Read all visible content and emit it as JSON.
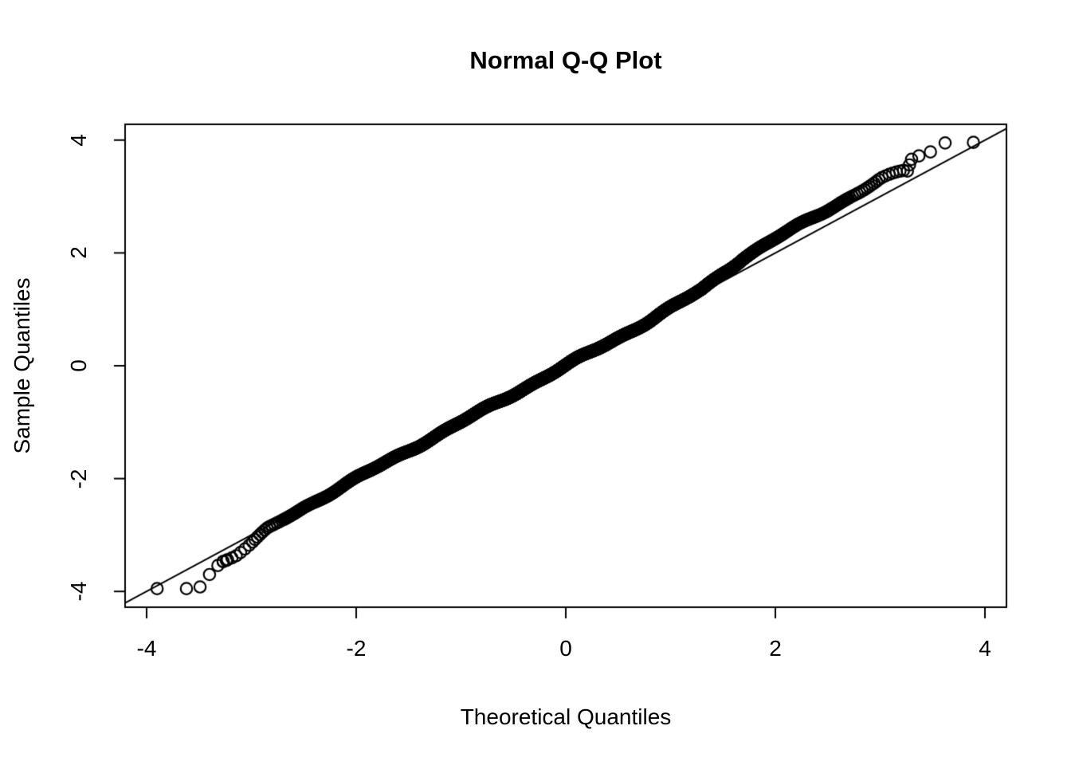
{
  "page": {
    "background": "#ffffff",
    "foreground": "#000000"
  },
  "chart_data": {
    "type": "scatter",
    "subtype": "normal-qq-plot",
    "title": "Normal Q-Q Plot",
    "xlabel": "Theoretical Quantiles",
    "ylabel": "Sample Quantiles",
    "xlim": [
      -4.205,
      4.205
    ],
    "ylim": [
      -4.28,
      4.28
    ],
    "xticks": [
      -4,
      -2,
      0,
      2,
      4
    ],
    "yticks": [
      -4,
      -2,
      0,
      2,
      4
    ],
    "grid": false,
    "legend": null,
    "marker": {
      "shape": "open-circle",
      "radius_px": 7.2,
      "stroke_px": 2.2,
      "color": "#000000"
    },
    "reference_line": {
      "slope": 1,
      "intercept": 0,
      "color": "#000000"
    },
    "lower_tail_points": [
      [
        -3.9,
        -3.95
      ],
      [
        -3.62,
        -3.95
      ],
      [
        -3.49,
        -3.92
      ],
      [
        -3.4,
        -3.7
      ],
      [
        -3.32,
        -3.54
      ],
      [
        -3.27,
        -3.47
      ],
      [
        -3.24,
        -3.45
      ]
    ],
    "upper_tail_points": [
      [
        3.26,
        3.45
      ],
      [
        3.28,
        3.56
      ],
      [
        3.3,
        3.66
      ],
      [
        3.37,
        3.72
      ],
      [
        3.48,
        3.79
      ],
      [
        3.62,
        3.95
      ],
      [
        3.89,
        3.96
      ]
    ],
    "band": {
      "description": "dense band of overlapping open circles; y = x + deviation(x) + small wiggle",
      "n_points_estimate": 2400,
      "x_range": [
        -3.29,
        3.24
      ],
      "deviation_profile": [
        [
          -3.29,
          -0.19
        ],
        [
          -3.15,
          -0.21
        ],
        [
          -3.0,
          -0.16
        ],
        [
          -2.85,
          -0.06
        ],
        [
          -2.7,
          -0.03
        ],
        [
          -2.5,
          -0.01
        ],
        [
          -2.0,
          0.0
        ],
        [
          -1.0,
          0.0
        ],
        [
          0.0,
          0.0
        ],
        [
          0.8,
          0.0
        ],
        [
          1.3,
          0.05
        ],
        [
          1.5,
          0.15
        ],
        [
          1.7,
          0.22
        ],
        [
          2.0,
          0.25
        ],
        [
          2.4,
          0.27
        ],
        [
          2.8,
          0.28
        ],
        [
          3.0,
          0.3
        ],
        [
          3.24,
          0.22
        ]
      ],
      "wiggle": {
        "amp1": 0.022,
        "freq1": 6.3,
        "phase1": 0.8,
        "amp2": 0.014,
        "freq2": 14.7
      },
      "density_segments": [
        [
          -3.29,
          -3.0,
          7
        ],
        [
          -3.0,
          -2.7,
          13
        ],
        [
          -2.7,
          -2.4,
          25
        ],
        [
          -2.4,
          -2.1,
          44
        ],
        [
          -2.1,
          -1.8,
          70
        ],
        [
          -1.8,
          -1.5,
          100
        ],
        [
          -1.5,
          -1.2,
          135
        ],
        [
          -1.2,
          -0.9,
          165
        ],
        [
          -0.9,
          -0.6,
          190
        ],
        [
          -0.6,
          -0.3,
          210
        ],
        [
          -0.3,
          0.0,
          220
        ],
        [
          0.0,
          0.3,
          220
        ],
        [
          0.3,
          0.6,
          210
        ],
        [
          0.6,
          0.9,
          190
        ],
        [
          0.9,
          1.2,
          165
        ],
        [
          1.2,
          1.5,
          135
        ],
        [
          1.5,
          1.8,
          100
        ],
        [
          1.8,
          2.1,
          70
        ],
        [
          2.1,
          2.4,
          44
        ],
        [
          2.4,
          2.7,
          25
        ],
        [
          2.7,
          3.0,
          13
        ],
        [
          3.0,
          3.24,
          7
        ]
      ]
    }
  }
}
